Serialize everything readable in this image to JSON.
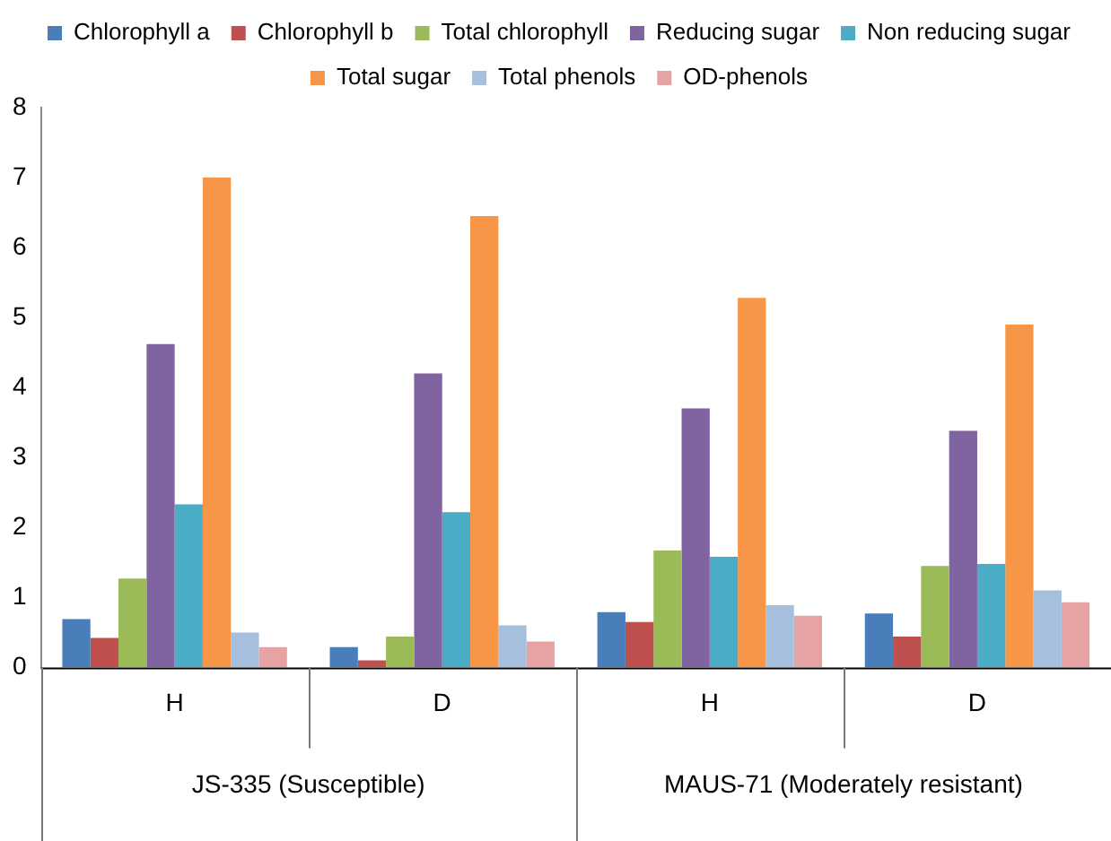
{
  "chart_data": {
    "type": "bar",
    "categories": [
      "H",
      "D",
      "H",
      "D"
    ],
    "series": [
      {
        "name": "Chlorophyll a",
        "color": "#4a7ebb",
        "values": [
          0.69,
          0.29,
          0.79,
          0.77
        ]
      },
      {
        "name": "Chlorophyll b",
        "color": "#c0504d",
        "values": [
          0.42,
          0.1,
          0.65,
          0.44
        ]
      },
      {
        "name": "Total chlorophyll",
        "color": "#9bbb59",
        "values": [
          1.27,
          0.44,
          1.67,
          1.45
        ]
      },
      {
        "name": "Reducing sugar",
        "color": "#8064a2",
        "values": [
          4.62,
          4.2,
          3.7,
          3.38
        ]
      },
      {
        "name": "Non reducing sugar",
        "color": "#4bacc6",
        "values": [
          2.33,
          2.22,
          1.58,
          1.48
        ]
      },
      {
        "name": "Total sugar",
        "color": "#f79646",
        "values": [
          7.0,
          6.45,
          5.28,
          4.9
        ]
      },
      {
        "name": "Total phenols",
        "color": "#a5bfdd",
        "values": [
          0.5,
          0.6,
          0.89,
          1.1
        ]
      },
      {
        "name": "OD-phenols",
        "color": "#e6a3a3",
        "values": [
          0.29,
          0.37,
          0.74,
          0.93
        ]
      }
    ],
    "annotations": [
      "JS-335 (Susceptible)",
      "MAUS-71 (Moderately resistant)"
    ],
    "ylim": [
      0,
      8
    ],
    "yticks": [
      0,
      1,
      2,
      3,
      4,
      5,
      6,
      7,
      8
    ],
    "grid": false,
    "legend": "top"
  }
}
